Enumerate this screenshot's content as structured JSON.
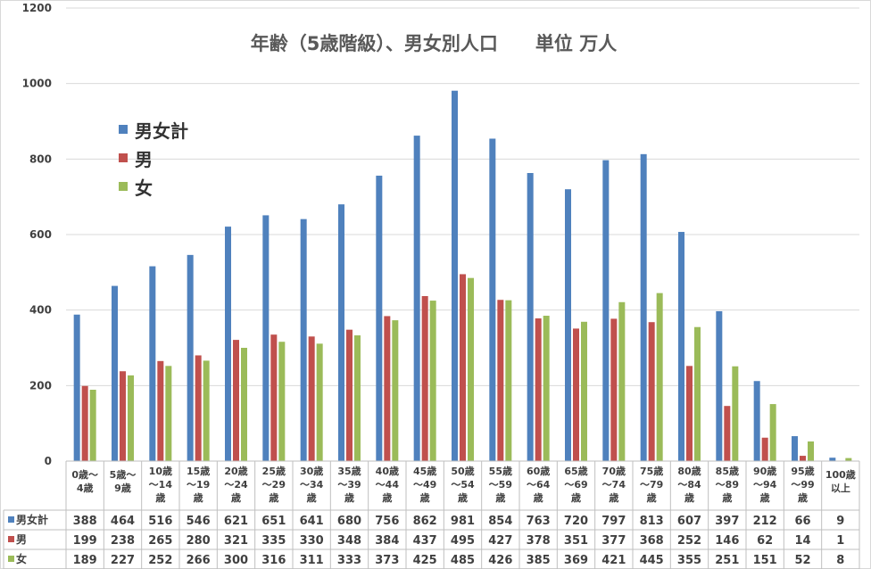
{
  "chart_data": {
    "type": "bar",
    "title": "年齢（5歳階級）、男女別人口　　単位 万人",
    "ylim": [
      0,
      1200
    ],
    "yticks": [
      0,
      200,
      400,
      600,
      800,
      1000,
      1200
    ],
    "grid": true,
    "legend_position": "left",
    "categories": [
      [
        "0歳～",
        "4歳"
      ],
      [
        "5歳～",
        "9歳"
      ],
      [
        "10歳",
        "～14",
        "歳"
      ],
      [
        "15歳",
        "～19",
        "歳"
      ],
      [
        "20歳",
        "～24",
        "歳"
      ],
      [
        "25歳",
        "～29",
        "歳"
      ],
      [
        "30歳",
        "～34",
        "歳"
      ],
      [
        "35歳",
        "～39",
        "歳"
      ],
      [
        "40歳",
        "～44",
        "歳"
      ],
      [
        "45歳",
        "～49",
        "歳"
      ],
      [
        "50歳",
        "～54",
        "歳"
      ],
      [
        "55歳",
        "～59",
        "歳"
      ],
      [
        "60歳",
        "～64",
        "歳"
      ],
      [
        "65歳",
        "～69",
        "歳"
      ],
      [
        "70歳",
        "～74",
        "歳"
      ],
      [
        "75歳",
        "～79",
        "歳"
      ],
      [
        "80歳",
        "～84",
        "歳"
      ],
      [
        "85歳",
        "～89",
        "歳"
      ],
      [
        "90歳",
        "～94",
        "歳"
      ],
      [
        "95歳",
        "～99",
        "歳"
      ],
      [
        "100歳",
        "以上"
      ]
    ],
    "series": [
      {
        "name": "男女計",
        "color": "#4F81BD",
        "values": [
          388,
          464,
          516,
          546,
          621,
          651,
          641,
          680,
          756,
          862,
          981,
          854,
          763,
          720,
          797,
          813,
          607,
          397,
          212,
          66,
          9
        ]
      },
      {
        "name": "男",
        "color": "#C0504D",
        "values": [
          199,
          238,
          265,
          280,
          321,
          335,
          330,
          348,
          384,
          437,
          495,
          427,
          378,
          351,
          377,
          368,
          252,
          146,
          62,
          14,
          1
        ]
      },
      {
        "name": "女",
        "color": "#9BBB59",
        "values": [
          189,
          227,
          252,
          266,
          300,
          316,
          311,
          333,
          373,
          425,
          485,
          426,
          385,
          369,
          421,
          445,
          355,
          251,
          151,
          52,
          8
        ]
      }
    ]
  }
}
